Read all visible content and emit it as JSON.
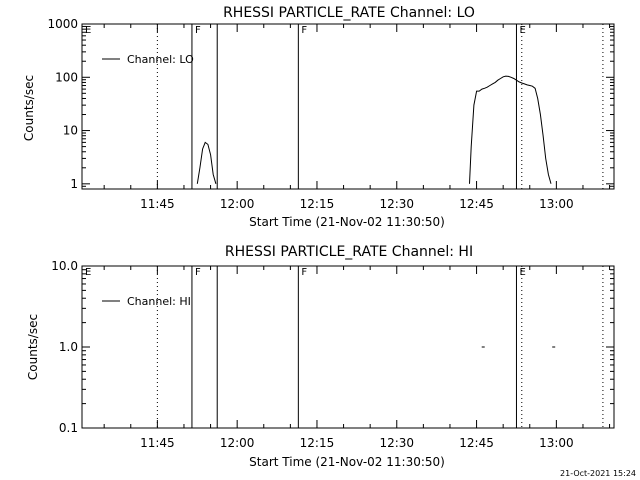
{
  "chart_data": [
    {
      "type": "line",
      "title": "RHESSI PARTICLE_RATE Channel: LO",
      "xlabel": "Start Time (21-Nov-02 11:30:50)",
      "ylabel": "Counts/sec",
      "yscale": "log",
      "ylim": [
        0.8,
        1000
      ],
      "xlim": [
        "11:30:50",
        "13:10:50"
      ],
      "x_ticks": [
        "11:45",
        "12:00",
        "12:15",
        "12:30",
        "12:45",
        "13:00"
      ],
      "y_ticks": [
        "1",
        "10",
        "100",
        "1000"
      ],
      "legend": {
        "placement": "top-left",
        "entries": [
          "Channel: LO"
        ]
      },
      "series": [
        {
          "name": "Channel: LO",
          "segments": [
            {
              "x": [
                "11:52:30",
                "11:53:00",
                "11:53:30",
                "11:54:00",
                "11:54:30",
                "11:55:00",
                "11:55:30",
                "11:56:00"
              ],
              "y": [
                1.0,
                2.0,
                4.5,
                6.0,
                5.5,
                3.5,
                1.5,
                1.0
              ]
            },
            {
              "x": [
                "12:43:40",
                "12:44:00",
                "12:44:30",
                "12:45:00",
                "12:45:30",
                "12:46:00",
                "12:46:30",
                "12:47:00",
                "12:47:30",
                "12:48:00",
                "12:48:30",
                "12:49:00",
                "12:49:30",
                "12:50:00",
                "12:50:30",
                "12:51:00",
                "12:51:30",
                "12:52:00",
                "12:52:30",
                "12:53:00",
                "12:53:30",
                "12:54:00",
                "12:54:30",
                "12:55:00",
                "12:55:30",
                "12:56:00",
                "12:56:30",
                "12:57:00",
                "12:57:30",
                "12:58:00",
                "12:58:30",
                "12:59:00"
              ],
              "y": [
                1.0,
                5.0,
                30,
                55,
                55,
                60,
                62,
                65,
                70,
                75,
                80,
                88,
                95,
                102,
                105,
                104,
                100,
                95,
                88,
                82,
                78,
                75,
                72,
                70,
                68,
                62,
                40,
                20,
                8,
                3,
                1.5,
                1.0
              ]
            }
          ]
        }
      ],
      "annotations": [
        {
          "label": "E",
          "x": "11:30:50",
          "style": "solid"
        },
        {
          "label": "",
          "x": "11:45:00",
          "style": "dotted"
        },
        {
          "label": "F",
          "x": "11:51:30",
          "style": "solid"
        },
        {
          "label": "",
          "x": "11:56:15",
          "style": "solid"
        },
        {
          "label": "F",
          "x": "12:11:30",
          "style": "solid"
        },
        {
          "label": "E",
          "x": "12:52:30",
          "style": "solid"
        },
        {
          "label": "",
          "x": "12:53:30",
          "style": "dotted"
        },
        {
          "label": "",
          "x": "13:08:45",
          "style": "dotted"
        }
      ]
    },
    {
      "type": "line",
      "title": "RHESSI PARTICLE_RATE Channel: HI",
      "xlabel": "Start Time (21-Nov-02 11:30:50)",
      "ylabel": "Counts/sec",
      "yscale": "log",
      "ylim": [
        0.1,
        10.0
      ],
      "xlim": [
        "11:30:50",
        "13:10:50"
      ],
      "x_ticks": [
        "11:45",
        "12:00",
        "12:15",
        "12:30",
        "12:45",
        "13:00"
      ],
      "y_ticks": [
        "0.1",
        "1.0",
        "10.0"
      ],
      "legend": {
        "placement": "top-left",
        "entries": [
          "Channel: HI"
        ]
      },
      "series": [
        {
          "name": "Channel: HI",
          "points": [
            {
              "x": "12:46:15",
              "y": 1.0
            },
            {
              "x": "12:59:30",
              "y": 1.0
            }
          ]
        }
      ],
      "annotations": [
        {
          "label": "E",
          "x": "11:30:50",
          "style": "solid"
        },
        {
          "label": "",
          "x": "11:45:00",
          "style": "dotted"
        },
        {
          "label": "F",
          "x": "11:51:30",
          "style": "solid"
        },
        {
          "label": "",
          "x": "11:56:15",
          "style": "solid"
        },
        {
          "label": "F",
          "x": "12:11:30",
          "style": "solid"
        },
        {
          "label": "E",
          "x": "12:52:30",
          "style": "solid"
        },
        {
          "label": "",
          "x": "12:53:30",
          "style": "dotted"
        },
        {
          "label": "",
          "x": "13:08:45",
          "style": "dotted"
        }
      ]
    }
  ],
  "footer": {
    "timestamp": "21-Oct-2021 15:24"
  }
}
